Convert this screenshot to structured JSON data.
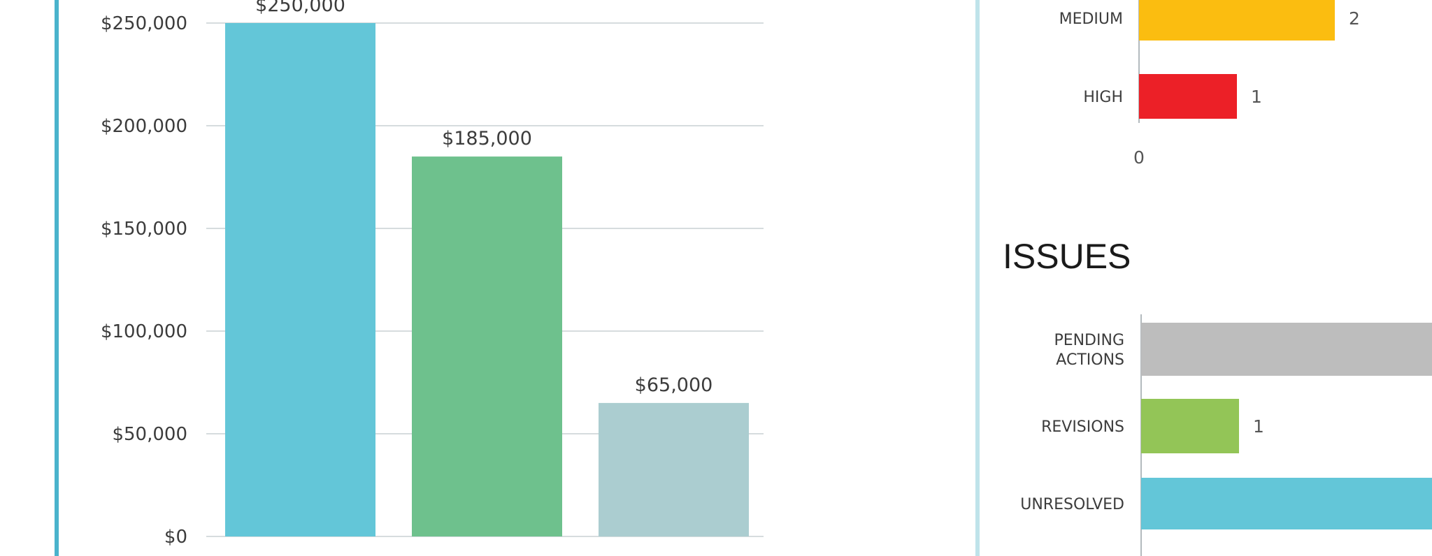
{
  "colors": {
    "left_accent": "#4ab3cc",
    "right_accent": "#bfe3ea",
    "grid": "#c8d0d4",
    "axis": "#9aa3a8"
  },
  "chart_data": [
    {
      "type": "bar",
      "categories": [
        "",
        "",
        ""
      ],
      "values": [
        250000,
        185000,
        65000
      ],
      "data_labels": [
        "$250,000",
        "$185,000",
        "$65,000"
      ],
      "colors": [
        "#63c6d8",
        "#6ec18d",
        "#abcdd0"
      ],
      "ylim": [
        0,
        250000
      ],
      "yticks": [
        0,
        50000,
        100000,
        150000,
        200000,
        250000
      ],
      "ytick_labels": [
        "$0",
        "$50,000",
        "$100,000",
        "$150,000",
        "$200,000",
        "$250,000"
      ],
      "grid": true
    },
    {
      "type": "bar",
      "orientation": "horizontal",
      "categories": [
        "MEDIUM",
        "HIGH"
      ],
      "values": [
        2,
        1
      ],
      "data_labels": [
        "2",
        "1"
      ],
      "colors": [
        "#fbbd10",
        "#ec2027"
      ],
      "xtick_labels": [
        "0"
      ]
    },
    {
      "type": "bar",
      "orientation": "horizontal",
      "title": "ISSUES",
      "categories": [
        "PENDING ACTIONS",
        "REVISIONS",
        "UNRESOLVED"
      ],
      "category_lines": [
        [
          "PENDING",
          "ACTIONS"
        ],
        [
          "REVISIONS"
        ],
        [
          "UNRESOLVED"
        ]
      ],
      "values": [
        3,
        1,
        3
      ],
      "data_labels": [
        "",
        "1",
        ""
      ],
      "colors": [
        "#bdbdbd",
        "#93c557",
        "#63c6d8"
      ]
    }
  ]
}
